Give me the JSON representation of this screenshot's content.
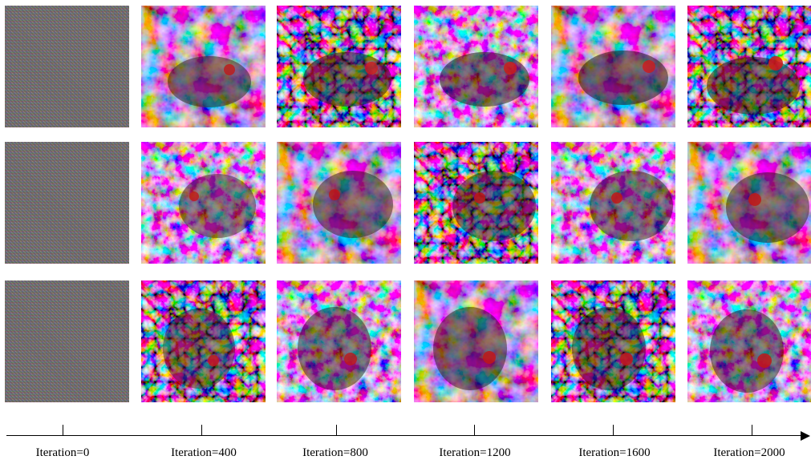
{
  "axis": {
    "labels": [
      "Iteration=0",
      "Iteration=400",
      "Iteration=800",
      "Iteration=1200",
      "Iteration=1600",
      "Iteration=2000"
    ]
  },
  "grid": {
    "rows": 3,
    "columns": 6,
    "content": "bird visualizations evolving from random noise"
  }
}
